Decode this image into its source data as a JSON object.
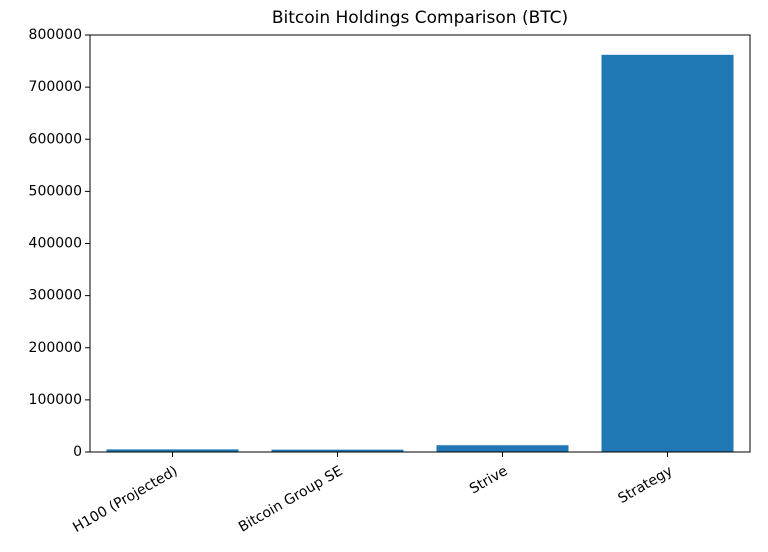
{
  "chart_data": {
    "type": "bar",
    "title": "Bitcoin Holdings Comparison (BTC)",
    "categories": [
      "H100 (Projected)",
      "Bitcoin Group SE",
      "Strive",
      "Strategy"
    ],
    "values": [
      5000,
      4500,
      13000,
      762000
    ],
    "color": "#1f77b4",
    "ylim": [
      0,
      800000
    ],
    "yticks": [
      0,
      100000,
      200000,
      300000,
      400000,
      500000,
      600000,
      700000,
      800000
    ],
    "grid": false
  }
}
